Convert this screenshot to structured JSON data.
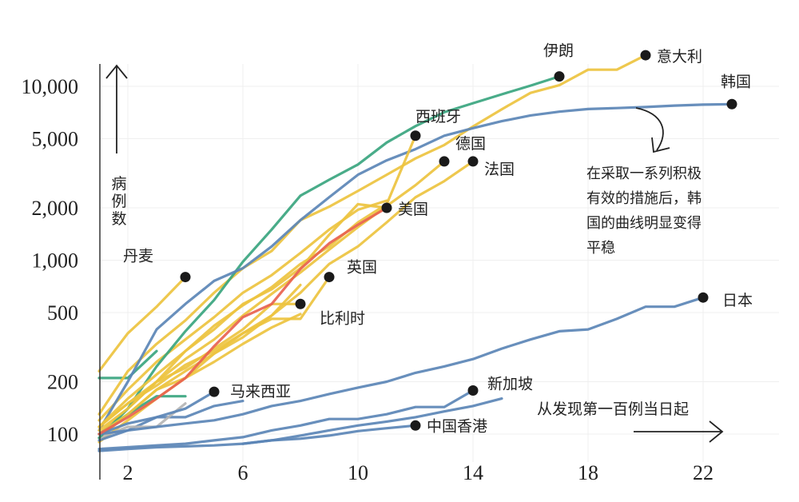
{
  "chart_data": {
    "type": "line",
    "title": "",
    "xlabel": "从发现第一百例当日起",
    "ylabel": "病例数",
    "yscale": "log",
    "xlim": [
      1,
      25
    ],
    "ylim": [
      80,
      16000
    ],
    "x_ticks": [
      2,
      6,
      10,
      14,
      18,
      22
    ],
    "x_tick_labels": [
      "2",
      "6",
      "10",
      "14",
      "18",
      "22"
    ],
    "y_ticks": [
      100,
      200,
      500,
      1000,
      2000,
      5000,
      10000
    ],
    "y_tick_labels": [
      "100",
      "200",
      "500",
      "1,000",
      "2,000",
      "5,000",
      "10,000"
    ],
    "grid": true,
    "colors": {
      "yellow": "#edc33f",
      "blue": "#5b86b6",
      "green": "#3aa57f",
      "red": "#e8624f",
      "gray": "#b5b5b5",
      "dot": "#1a1a1a"
    },
    "series": [
      {
        "name": "意大利",
        "color": "yellow",
        "labeled": true,
        "x": [
          1,
          2,
          3,
          4,
          5,
          6,
          7,
          8,
          9,
          10,
          11,
          12,
          13,
          14,
          15,
          16,
          17,
          18,
          19,
          20
        ],
        "y": [
          130,
          230,
          330,
          450,
          650,
          900,
          1130,
          1700,
          2030,
          2500,
          3100,
          3850,
          4600,
          5880,
          7380,
          9170,
          10150,
          12460,
          12460,
          15100
        ]
      },
      {
        "name": "伊朗",
        "color": "green",
        "labeled": true,
        "x": [
          1,
          2,
          3,
          4,
          5,
          6,
          7,
          8,
          9,
          10,
          11,
          12,
          13,
          14,
          15,
          16,
          17
        ],
        "y": [
          95,
          140,
          245,
          390,
          590,
          980,
          1500,
          2350,
          2900,
          3550,
          4750,
          5900,
          7100,
          8000,
          9000,
          10100,
          11400
        ]
      },
      {
        "name": "韩国",
        "color": "blue",
        "labeled": true,
        "x": [
          1,
          2,
          3,
          4,
          5,
          6,
          7,
          8,
          9,
          10,
          11,
          12,
          13,
          14,
          15,
          16,
          17,
          18,
          19,
          20,
          21,
          22,
          23
        ],
        "y": [
          105,
          200,
          400,
          560,
          760,
          900,
          1200,
          1700,
          2300,
          3100,
          3750,
          4350,
          5200,
          5750,
          6300,
          6800,
          7150,
          7400,
          7500,
          7600,
          7750,
          7850,
          7900
        ]
      },
      {
        "name": "西班牙",
        "color": "yellow",
        "labeled": true,
        "x": [
          1,
          2,
          3,
          4,
          5,
          6,
          7,
          8,
          9,
          10,
          11,
          12
        ],
        "y": [
          110,
          160,
          220,
          300,
          420,
          550,
          700,
          950,
          1200,
          1650,
          2100,
          5200
        ]
      },
      {
        "name": "德国",
        "color": "yellow",
        "labeled": true,
        "x": [
          1,
          2,
          3,
          4,
          5,
          6,
          7,
          8,
          9,
          10,
          11,
          12,
          13
        ],
        "y": [
          110,
          150,
          200,
          270,
          350,
          480,
          640,
          850,
          1150,
          1550,
          2050,
          2700,
          3700
        ]
      },
      {
        "name": "法国",
        "color": "yellow",
        "labeled": true,
        "x": [
          1,
          2,
          3,
          4,
          5,
          6,
          7,
          8,
          9,
          10,
          11,
          12,
          13,
          14
        ],
        "y": [
          100,
          130,
          180,
          210,
          290,
          380,
          480,
          650,
          950,
          1200,
          1650,
          2300,
          2850,
          3700
        ]
      },
      {
        "name": "美国",
        "color": "red",
        "labeled": true,
        "x": [
          1,
          2,
          3,
          4,
          5,
          6,
          7,
          8,
          9,
          10,
          11
        ],
        "y": [
          100,
          125,
          160,
          210,
          320,
          470,
          560,
          890,
          1250,
          1600,
          2000
        ]
      },
      {
        "name": "英国",
        "color": "yellow",
        "labeled": true,
        "x": [
          1,
          2,
          3,
          4,
          5,
          6,
          7,
          8,
          9
        ],
        "y": [
          110,
          150,
          190,
          250,
          300,
          380,
          460,
          460,
          800
        ]
      },
      {
        "name": "比利时",
        "color": "yellow",
        "labeled": true,
        "x": [
          1,
          2,
          3,
          4,
          5,
          6,
          7,
          8
        ],
        "y": [
          105,
          140,
          200,
          240,
          310,
          400,
          560,
          560
        ]
      },
      {
        "name": "丹麦",
        "color": "yellow",
        "labeled": true,
        "x": [
          1,
          2,
          3,
          4
        ],
        "y": [
          230,
          380,
          540,
          800
        ]
      },
      {
        "name": "日本",
        "color": "blue",
        "labeled": true,
        "x": [
          1,
          2,
          3,
          4,
          5,
          6,
          7,
          8,
          9,
          10,
          11,
          12,
          13,
          14,
          15,
          16,
          17,
          18,
          19,
          20,
          21,
          22
        ],
        "y": [
          100,
          105,
          110,
          115,
          120,
          130,
          145,
          155,
          170,
          185,
          200,
          225,
          245,
          270,
          310,
          350,
          390,
          400,
          460,
          540,
          540,
          610
        ]
      },
      {
        "name": "马来西亚",
        "color": "blue",
        "labeled": true,
        "x": [
          1,
          2,
          3,
          4,
          5
        ],
        "y": [
          100,
          115,
          125,
          140,
          175
        ]
      },
      {
        "name": "新加坡",
        "color": "blue",
        "labeled": true,
        "x": [
          1,
          2,
          3,
          4,
          5,
          6,
          7,
          8,
          9,
          10,
          11,
          12,
          13,
          14
        ],
        "y": [
          82,
          84,
          86,
          88,
          92,
          96,
          105,
          112,
          122,
          122,
          130,
          143,
          143,
          178
        ]
      },
      {
        "name": "中国香港",
        "color": "blue",
        "labeled": true,
        "x": [
          1,
          2,
          3,
          4,
          5,
          6,
          7,
          8,
          9,
          10,
          11,
          12
        ],
        "y": [
          80,
          82,
          84,
          85,
          86,
          88,
          92,
          94,
          98,
          104,
          108,
          112
        ]
      },
      {
        "name": "",
        "color": "yellow",
        "labeled": false,
        "x": [
          1,
          2,
          3,
          4,
          5,
          6,
          7,
          8,
          9,
          10,
          11
        ],
        "y": [
          120,
          180,
          260,
          350,
          470,
          650,
          820,
          1100,
          1500,
          1950,
          2200
        ]
      },
      {
        "name": "",
        "color": "yellow",
        "labeled": false,
        "x": [
          1,
          2,
          3,
          4,
          5,
          6,
          7,
          8,
          9,
          10,
          11
        ],
        "y": [
          100,
          140,
          200,
          300,
          400,
          560,
          680,
          900,
          1400,
          2100,
          2000
        ]
      },
      {
        "name": "",
        "color": "yellow",
        "labeled": false,
        "x": [
          1,
          2,
          3,
          4,
          5,
          6,
          7,
          8
        ],
        "y": [
          95,
          130,
          180,
          230,
          290,
          360,
          480,
          720
        ]
      },
      {
        "name": "",
        "color": "yellow",
        "labeled": false,
        "x": [
          1,
          2,
          3,
          4,
          5,
          6,
          7,
          8
        ],
        "y": [
          90,
          120,
          160,
          210,
          260,
          330,
          410,
          490
        ]
      },
      {
        "name": "",
        "color": "green",
        "labeled": false,
        "x": [
          1,
          2,
          3
        ],
        "y": [
          210,
          210,
          300
        ]
      },
      {
        "name": "",
        "color": "green",
        "labeled": false,
        "x": [
          1,
          2,
          3,
          4
        ],
        "y": [
          100,
          130,
          165,
          165
        ]
      },
      {
        "name": "",
        "color": "blue",
        "labeled": false,
        "x": [
          1,
          2,
          3,
          4,
          5,
          6
        ],
        "y": [
          92,
          105,
          125,
          125,
          145,
          155
        ]
      },
      {
        "name": "",
        "color": "gray",
        "labeled": false,
        "x": [
          1,
          2,
          3,
          4
        ],
        "y": [
          95,
          110,
          110,
          150
        ]
      },
      {
        "name": "",
        "color": "blue",
        "labeled": false,
        "x": [
          6,
          7,
          8,
          9,
          10,
          11,
          12,
          13,
          14,
          15
        ],
        "y": [
          88,
          92,
          98,
          105,
          112,
          118,
          125,
          135,
          145,
          160
        ]
      }
    ],
    "annotations": [
      {
        "text": "在采取一系列积极有效的措施后，韩国的曲线明显变得平稳",
        "lines": [
          "在采取一系列积极",
          "有效的措施后，韩",
          "国的曲线明显变得",
          "平稳"
        ],
        "target": "韩国"
      }
    ]
  }
}
